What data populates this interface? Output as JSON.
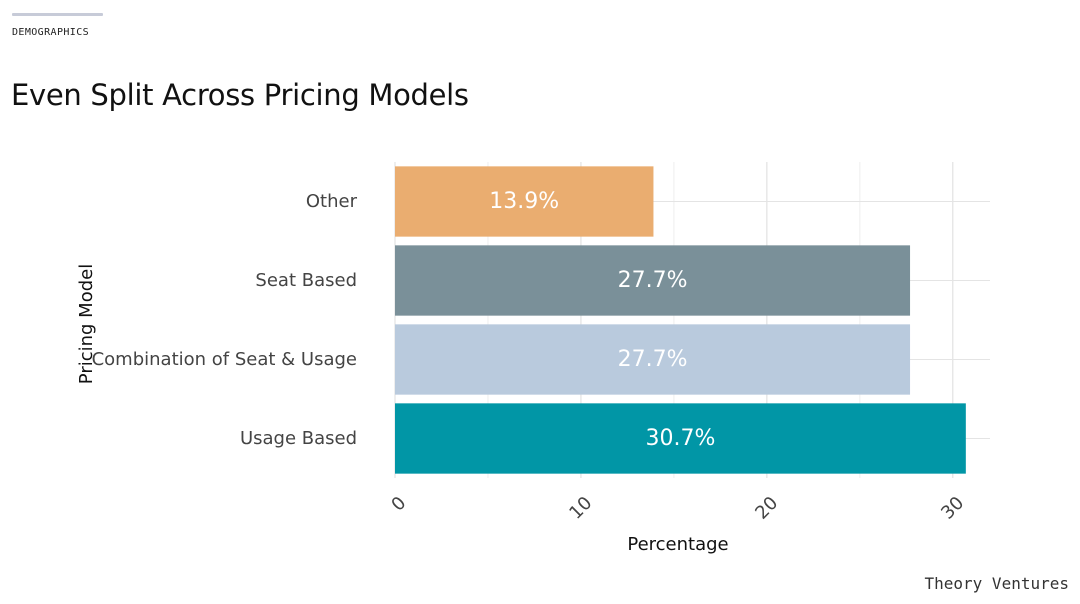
{
  "header": {
    "section_label": "DEMOGRAPHICS",
    "title": "Even Split Across Pricing Models"
  },
  "footer": {
    "brand": "Theory Ventures"
  },
  "chart_data": {
    "type": "bar",
    "orientation": "horizontal",
    "categories": [
      "Other",
      "Seat Based",
      "Combination of Seat & Usage",
      "Usage Based"
    ],
    "values": [
      13.9,
      27.7,
      27.7,
      30.7
    ],
    "data_labels": [
      "13.9%",
      "27.7%",
      "27.7%",
      "30.7%"
    ],
    "colors": [
      "#eaad70",
      "#7a9099",
      "#b9cadd",
      "#0196a6"
    ],
    "xlabel": "Percentage",
    "ylabel": "Pricing Model",
    "xlim": [
      0,
      32
    ],
    "xticks": [
      0,
      10,
      20,
      30
    ],
    "grid": true,
    "legend": "none"
  }
}
